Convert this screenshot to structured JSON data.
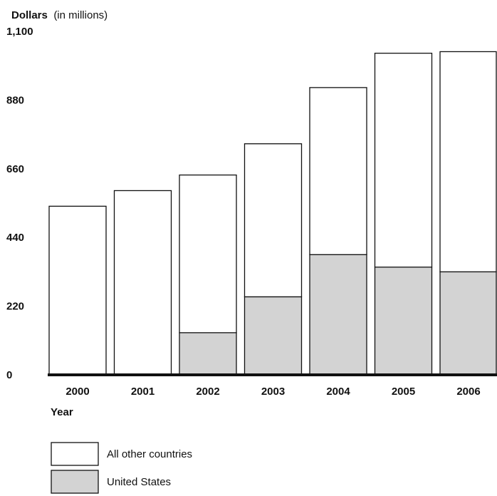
{
  "chart_data": {
    "type": "bar",
    "stacked": true,
    "title": "",
    "ylabel_bold": "Dollars",
    "ylabel_rest": "(in millions)",
    "xlabel": "Year",
    "ylim": [
      0,
      1100
    ],
    "yticks": [
      "0",
      "220",
      "440",
      "660",
      "880",
      "1,100"
    ],
    "ytick_values": [
      0,
      220,
      440,
      660,
      880,
      1100
    ],
    "grid": false,
    "categories": [
      "2000",
      "2001",
      "2002",
      "2003",
      "2004",
      "2005",
      "2006"
    ],
    "series": [
      {
        "name": "United States",
        "color": "#d3d3d3",
        "values": [
          0,
          0,
          135,
          250,
          385,
          345,
          330
        ]
      },
      {
        "name": "All other countries",
        "color": "#ffffff",
        "values": [
          540,
          590,
          505,
          490,
          535,
          685,
          705
        ]
      }
    ],
    "legend_placement": "bottom-left",
    "legend": [
      {
        "label": "All other countries",
        "color": "#ffffff"
      },
      {
        "label": "United States",
        "color": "#d3d3d3"
      }
    ]
  }
}
